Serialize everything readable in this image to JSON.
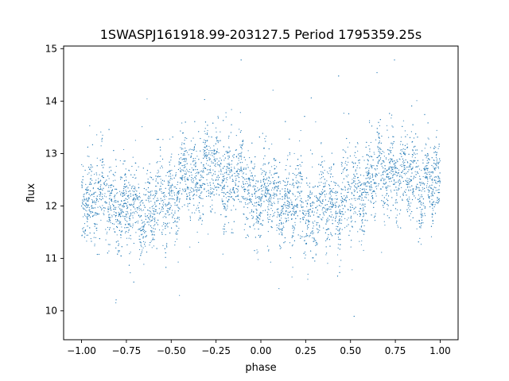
{
  "chart_data": {
    "type": "scatter",
    "title": "1SWASPJ161918.99-203127.5 Period 1795359.25s",
    "xlabel": "phase",
    "ylabel": "flux",
    "xlim": [
      -1.1,
      1.1
    ],
    "ylim": [
      9.45,
      15.05
    ],
    "xticks": [
      -1.0,
      -0.75,
      -0.5,
      -0.25,
      0.0,
      0.25,
      0.5,
      0.75,
      1.0
    ],
    "xtick_labels": [
      "−1.00",
      "−0.75",
      "−0.50",
      "−0.25",
      "0.00",
      "0.25",
      "0.50",
      "0.75",
      "1.00"
    ],
    "yticks": [
      10,
      11,
      12,
      13,
      14,
      15
    ],
    "ytick_labels": [
      "10",
      "11",
      "12",
      "13",
      "14",
      "15"
    ],
    "grid": false,
    "legend": "none",
    "point_color": "#1f77b4",
    "series": [
      {
        "x_range": [
          -1.0,
          1.0
        ],
        "mean_profile": {
          "phase": [
            -1.0,
            -0.9,
            -0.8,
            -0.7,
            -0.6,
            -0.5,
            -0.4,
            -0.3,
            -0.2,
            -0.1,
            0.0,
            0.1,
            0.2,
            0.3,
            0.4,
            0.5,
            0.6,
            0.7,
            0.8,
            0.9,
            1.0
          ],
          "flux": [
            12.3,
            12.1,
            12.0,
            11.9,
            12.0,
            12.2,
            12.5,
            12.7,
            12.6,
            12.4,
            12.2,
            12.1,
            12.0,
            11.9,
            12.0,
            12.2,
            12.5,
            12.7,
            12.6,
            12.4,
            12.3
          ]
        },
        "typical_spread": 0.5,
        "approx_points": 6000
      }
    ]
  }
}
